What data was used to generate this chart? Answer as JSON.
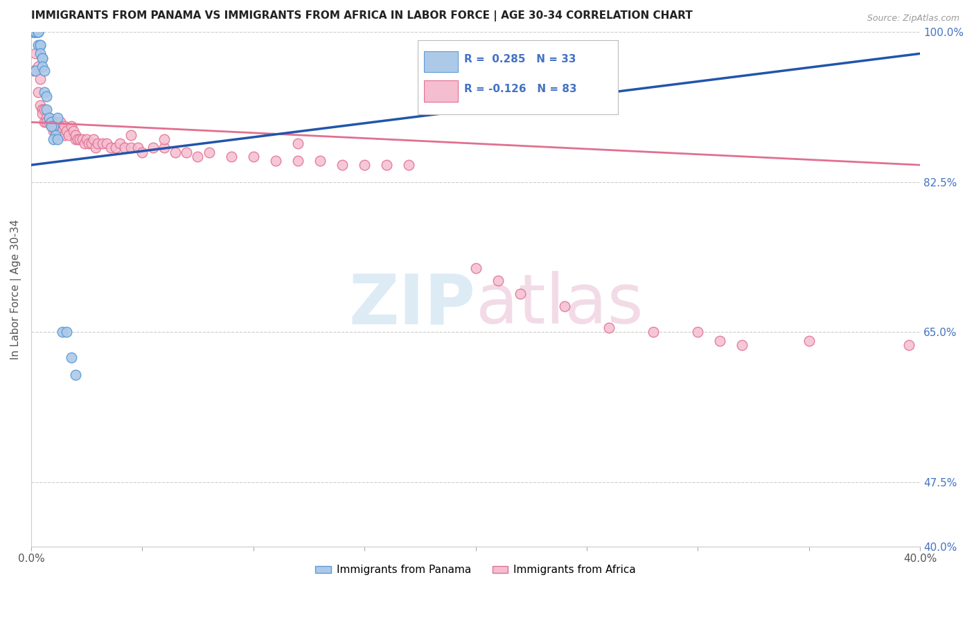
{
  "title": "IMMIGRANTS FROM PANAMA VS IMMIGRANTS FROM AFRICA IN LABOR FORCE | AGE 30-34 CORRELATION CHART",
  "source": "Source: ZipAtlas.com",
  "ylabel": "In Labor Force | Age 30-34",
  "xlim": [
    0.0,
    0.4
  ],
  "ylim": [
    0.4,
    1.0
  ],
  "xtick_positions": [
    0.0,
    0.05,
    0.1,
    0.15,
    0.2,
    0.25,
    0.3,
    0.35,
    0.4
  ],
  "xtick_labels": [
    "0.0%",
    "",
    "",
    "",
    "",
    "",
    "",
    "",
    "40.0%"
  ],
  "ytick_positions": [
    1.0,
    0.825,
    0.65,
    0.475,
    0.4
  ],
  "ytick_labels": [
    "100.0%",
    "82.5%",
    "65.0%",
    "47.5%",
    "40.0%"
  ],
  "legend_R_panama": "R =  0.285",
  "legend_N_panama": "N = 33",
  "legend_R_africa": "R = -0.126",
  "legend_N_africa": "N = 83",
  "panama_color": "#adc9e8",
  "panama_edge": "#5b9bd5",
  "africa_color": "#f5bdd0",
  "africa_edge": "#e07090",
  "trendline_panama_color": "#2255aa",
  "trendline_africa_color": "#e07090",
  "trendline_panama_x0": 0.0,
  "trendline_panama_y0": 0.845,
  "trendline_panama_x1": 0.4,
  "trendline_panama_y1": 0.975,
  "trendline_africa_x0": 0.0,
  "trendline_africa_y0": 0.895,
  "trendline_africa_x1": 0.4,
  "trendline_africa_y1": 0.845,
  "panama_x": [
    0.001,
    0.001,
    0.001,
    0.002,
    0.002,
    0.002,
    0.002,
    0.003,
    0.003,
    0.003,
    0.003,
    0.004,
    0.004,
    0.004,
    0.005,
    0.005,
    0.005,
    0.006,
    0.006,
    0.007,
    0.007,
    0.008,
    0.009,
    0.01,
    0.011,
    0.012,
    0.014,
    0.016,
    0.018,
    0.02,
    0.009,
    0.01,
    0.012
  ],
  "panama_y": [
    1.0,
    1.0,
    1.0,
    1.0,
    1.0,
    1.0,
    0.955,
    1.0,
    1.0,
    1.0,
    0.985,
    0.985,
    0.985,
    0.975,
    0.97,
    0.97,
    0.96,
    0.955,
    0.93,
    0.925,
    0.91,
    0.9,
    0.895,
    0.89,
    0.88,
    0.9,
    0.65,
    0.65,
    0.62,
    0.6,
    0.89,
    0.875,
    0.875
  ],
  "africa_x": [
    0.001,
    0.002,
    0.002,
    0.003,
    0.003,
    0.004,
    0.004,
    0.005,
    0.005,
    0.005,
    0.006,
    0.006,
    0.007,
    0.007,
    0.008,
    0.008,
    0.009,
    0.009,
    0.01,
    0.01,
    0.011,
    0.011,
    0.012,
    0.012,
    0.013,
    0.013,
    0.014,
    0.015,
    0.015,
    0.016,
    0.017,
    0.018,
    0.019,
    0.02,
    0.02,
    0.021,
    0.022,
    0.023,
    0.024,
    0.025,
    0.026,
    0.027,
    0.028,
    0.029,
    0.03,
    0.032,
    0.034,
    0.036,
    0.038,
    0.04,
    0.042,
    0.045,
    0.048,
    0.05,
    0.055,
    0.06,
    0.065,
    0.07,
    0.075,
    0.08,
    0.09,
    0.1,
    0.11,
    0.12,
    0.13,
    0.14,
    0.15,
    0.16,
    0.17,
    0.2,
    0.21,
    0.22,
    0.24,
    0.26,
    0.28,
    0.3,
    0.31,
    0.32,
    0.35,
    0.395,
    0.12,
    0.045,
    0.06
  ],
  "africa_y": [
    0.955,
    0.975,
    1.0,
    0.96,
    0.93,
    0.945,
    0.915,
    0.91,
    0.91,
    0.905,
    0.91,
    0.895,
    0.9,
    0.895,
    0.895,
    0.9,
    0.895,
    0.89,
    0.895,
    0.885,
    0.895,
    0.885,
    0.89,
    0.885,
    0.895,
    0.88,
    0.885,
    0.89,
    0.88,
    0.885,
    0.88,
    0.89,
    0.885,
    0.875,
    0.88,
    0.875,
    0.875,
    0.875,
    0.87,
    0.875,
    0.87,
    0.87,
    0.875,
    0.865,
    0.87,
    0.87,
    0.87,
    0.865,
    0.865,
    0.87,
    0.865,
    0.865,
    0.865,
    0.86,
    0.865,
    0.865,
    0.86,
    0.86,
    0.855,
    0.86,
    0.855,
    0.855,
    0.85,
    0.85,
    0.85,
    0.845,
    0.845,
    0.845,
    0.845,
    0.725,
    0.71,
    0.695,
    0.68,
    0.655,
    0.65,
    0.65,
    0.64,
    0.635,
    0.64,
    0.635,
    0.87,
    0.88,
    0.875
  ]
}
